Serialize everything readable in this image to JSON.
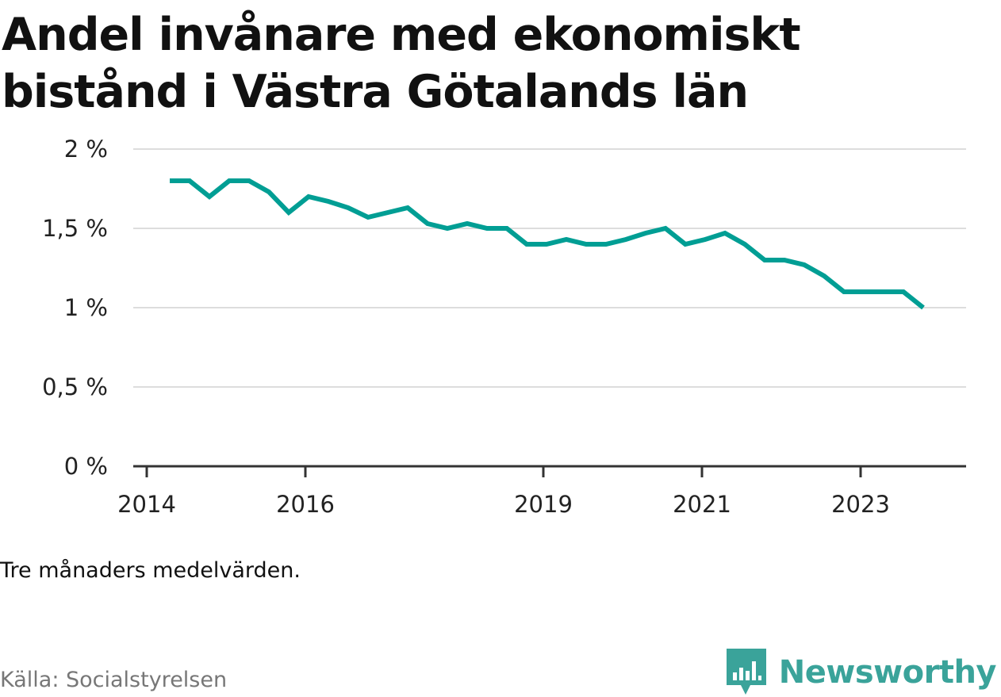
{
  "title_lines": [
    "Andel invånare med ekonomiskt",
    "bistånd i Västra Götalands län"
  ],
  "note": "Tre månaders medelvärden.",
  "source": "Källa: Socialstyrelsen",
  "brand": {
    "name": "Newsworthy",
    "icon": "newsworthy-logo-icon",
    "color": "#3aa39a"
  },
  "chart_data": {
    "type": "line",
    "title": "Andel invånare med ekonomiskt bistånd i Västra Götalands län",
    "xlabel": "",
    "ylabel": "",
    "ylim": [
      0,
      2
    ],
    "xlim": [
      2013.83,
      2024.33
    ],
    "grid": true,
    "line_color": "#009e94",
    "y_ticks": [
      {
        "value": 0,
        "label": "0 %"
      },
      {
        "value": 0.5,
        "label": "0,5 %"
      },
      {
        "value": 1,
        "label": "1 %"
      },
      {
        "value": 1.5,
        "label": "1,5 %"
      },
      {
        "value": 2,
        "label": "2 %"
      }
    ],
    "x_ticks": [
      {
        "value": 2014,
        "label": "2014"
      },
      {
        "value": 2016,
        "label": "2016"
      },
      {
        "value": 2019,
        "label": "2019"
      },
      {
        "value": 2021,
        "label": "2021"
      },
      {
        "value": 2023,
        "label": "2023"
      }
    ],
    "series": [
      {
        "x": [
          2014.29,
          2014.54,
          2014.79,
          2015.04,
          2015.29,
          2015.54,
          2015.79,
          2016.04,
          2016.29,
          2016.54,
          2016.79,
          2017.04,
          2017.29,
          2017.54,
          2017.79,
          2018.04,
          2018.29,
          2018.54,
          2018.79,
          2019.04,
          2019.29,
          2019.54,
          2019.79,
          2020.04,
          2020.29,
          2020.54,
          2020.79,
          2021.04,
          2021.29,
          2021.54,
          2021.79,
          2022.04,
          2022.29,
          2022.54,
          2022.79,
          2023.04,
          2023.29,
          2023.54,
          2023.79
        ],
        "values": [
          1.8,
          1.8,
          1.7,
          1.8,
          1.8,
          1.73,
          1.6,
          1.7,
          1.67,
          1.63,
          1.57,
          1.6,
          1.63,
          1.53,
          1.5,
          1.53,
          1.5,
          1.5,
          1.4,
          1.4,
          1.43,
          1.4,
          1.4,
          1.43,
          1.47,
          1.5,
          1.4,
          1.43,
          1.47,
          1.4,
          1.3,
          1.3,
          1.27,
          1.2,
          1.1,
          1.1,
          1.1,
          1.1,
          1.0
        ]
      }
    ]
  }
}
